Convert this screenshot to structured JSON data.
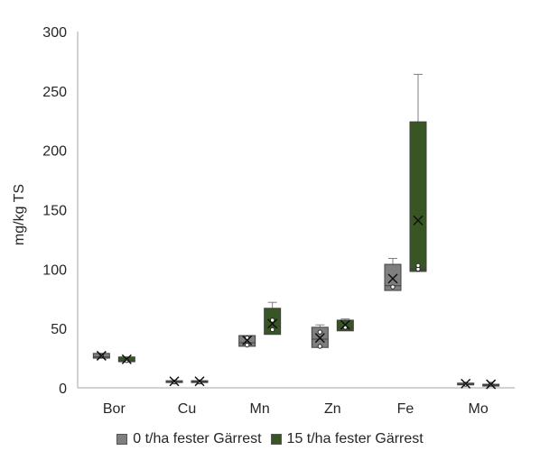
{
  "chart_data": {
    "type": "box",
    "ylabel": "mg/kg TS",
    "ylim": [
      0,
      300
    ],
    "yticks": [
      0,
      50,
      100,
      150,
      200,
      250,
      300
    ],
    "grid": false,
    "legend_position": "bottom",
    "categories": [
      "Bor",
      "Cu",
      "Mn",
      "Zn",
      "Fe",
      "Mo"
    ],
    "series": [
      {
        "name": "0 t/ha fester Gärrest",
        "color": "#7f7f7f",
        "boxes": [
          {
            "min": 25,
            "q1": 25,
            "median": 26,
            "q3": 29,
            "max": 29,
            "mean": 27,
            "points": [
              27
            ]
          },
          {
            "min": 5,
            "q1": 5,
            "median": 5,
            "q3": 6,
            "max": 6,
            "mean": 5.5,
            "points": [
              5
            ]
          },
          {
            "min": 35,
            "q1": 35,
            "median": 38,
            "q3": 44,
            "max": 44,
            "mean": 40,
            "points": [
              36,
              42
            ]
          },
          {
            "min": 34,
            "q1": 34,
            "median": 41,
            "q3": 51,
            "max": 53,
            "mean": 42,
            "points": [
              35,
              47
            ]
          },
          {
            "min": 82,
            "q1": 82,
            "median": 86,
            "q3": 104,
            "max": 109,
            "mean": 92,
            "points": [
              85
            ]
          },
          {
            "min": 3,
            "q1": 3,
            "median": 3,
            "q3": 4,
            "max": 4,
            "mean": 3.5,
            "points": [
              3
            ]
          }
        ]
      },
      {
        "name": "15 t/ha fester Gärrest",
        "color": "#375623",
        "boxes": [
          {
            "min": 22,
            "q1": 22,
            "median": 23,
            "q3": 26,
            "max": 26,
            "mean": 24,
            "points": [
              23
            ]
          },
          {
            "min": 5,
            "q1": 5,
            "median": 5,
            "q3": 6,
            "max": 6,
            "mean": 5.5,
            "points": [
              5
            ]
          },
          {
            "min": 45,
            "q1": 45,
            "median": 52,
            "q3": 67,
            "max": 72,
            "mean": 54,
            "points": [
              49,
              57
            ]
          },
          {
            "min": 48,
            "q1": 48,
            "median": 51,
            "q3": 57,
            "max": 58,
            "mean": 53,
            "points": [
              51
            ]
          },
          {
            "min": 98,
            "q1": 98,
            "median": 100,
            "q3": 224,
            "max": 264,
            "mean": 141,
            "points": [
              100,
              103
            ]
          },
          {
            "min": 2,
            "q1": 2,
            "median": 3,
            "q3": 3,
            "max": 3,
            "mean": 3,
            "points": [
              3
            ]
          }
        ]
      }
    ]
  }
}
